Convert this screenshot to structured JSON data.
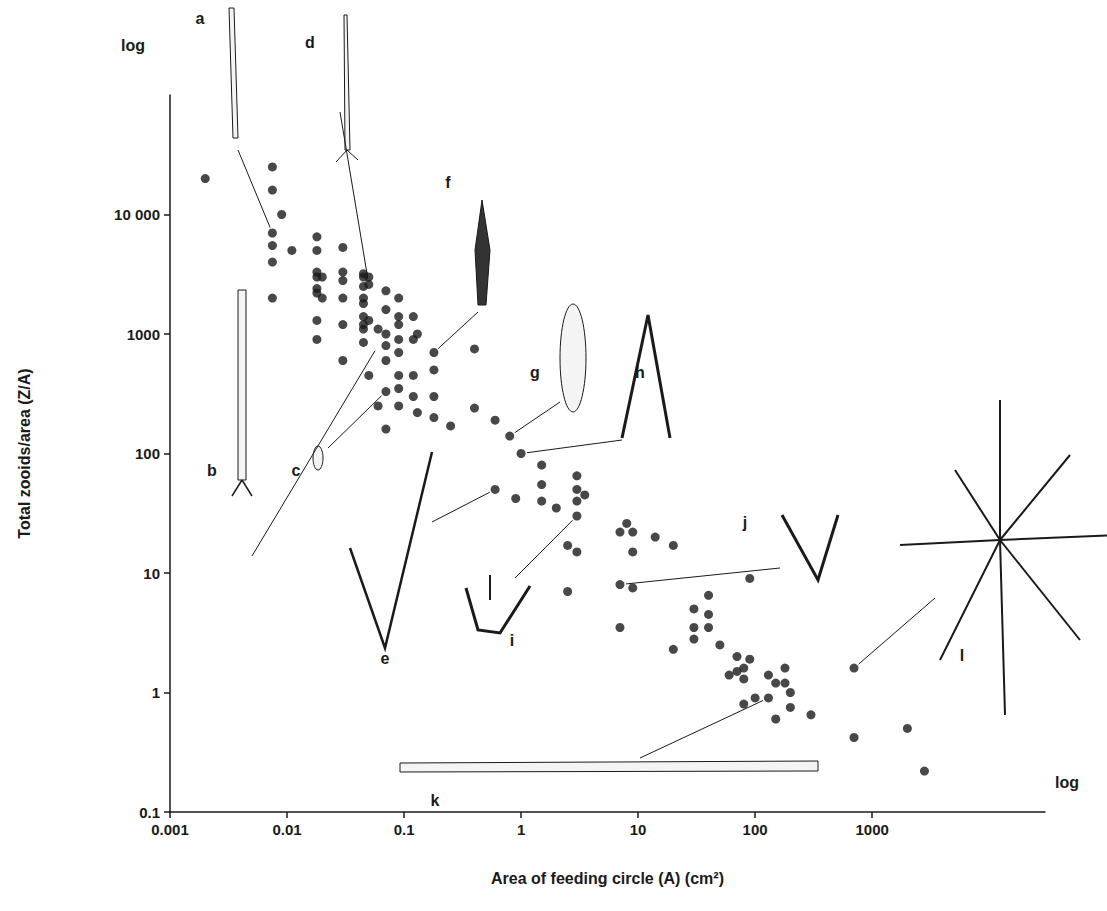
{
  "chart_data": {
    "type": "scatter",
    "x_label": "Area of feeding circle (A) (cm²)",
    "y_label": "Total zooids/area (Z/A)",
    "color": "#1a1a1a",
    "marker": "circle",
    "log": true,
    "grid": false,
    "xlim": [
      0.001,
      30000
    ],
    "ylim": [
      0.1,
      100000
    ],
    "xticks": [
      0.001,
      0.01,
      0.1,
      1,
      10,
      100,
      1000
    ],
    "yticks": [
      0.1,
      1,
      10,
      100,
      1000,
      {
        "value": 10000,
        "label": "10 000"
      }
    ],
    "x": [
      0.002,
      0.0075,
      0.0075,
      0.0075,
      0.0075,
      0.0075,
      0.0075,
      0.009,
      0.011,
      0.018,
      0.018,
      0.018,
      0.018,
      0.018,
      0.018,
      0.018,
      0.018,
      0.02,
      0.02,
      0.03,
      0.03,
      0.03,
      0.03,
      0.03,
      0.03,
      0.045,
      0.045,
      0.045,
      0.045,
      0.045,
      0.045,
      0.045,
      0.045,
      0.045,
      0.05,
      0.05,
      0.05,
      0.05,
      0.06,
      0.06,
      0.07,
      0.07,
      0.07,
      0.07,
      0.07,
      0.07,
      0.07,
      0.09,
      0.09,
      0.09,
      0.09,
      0.09,
      0.09,
      0.09,
      0.09,
      0.12,
      0.12,
      0.12,
      0.12,
      0.13,
      0.13,
      0.18,
      0.18,
      0.18,
      0.18,
      0.25,
      0.4,
      0.4,
      0.6,
      0.6,
      0.8,
      0.9,
      1,
      1.5,
      1.5,
      1.5,
      2,
      2.5,
      2.5,
      3,
      3,
      3,
      3,
      3,
      3.5,
      7,
      7,
      7,
      8,
      9,
      9,
      9,
      14,
      20,
      20,
      30,
      30,
      30,
      40,
      40,
      40,
      50,
      60,
      70,
      70,
      80,
      80,
      80,
      90,
      90,
      100,
      130,
      130,
      150,
      150,
      180,
      180,
      200,
      200,
      300,
      700,
      700,
      2000,
      2800
    ],
    "values": [
      20000,
      25000,
      16000,
      7000,
      5500,
      4000,
      2000,
      10000,
      5000,
      6500,
      5000,
      3300,
      3000,
      2400,
      2200,
      1300,
      900,
      3000,
      2000,
      5300,
      3300,
      2800,
      2000,
      1200,
      600,
      3200,
      3000,
      2500,
      2000,
      1800,
      1400,
      1200,
      1100,
      850,
      3000,
      2600,
      1300,
      450,
      1100,
      250,
      2300,
      1600,
      1000,
      800,
      600,
      330,
      160,
      2000,
      1400,
      1200,
      900,
      700,
      450,
      350,
      250,
      1400,
      900,
      450,
      300,
      1000,
      220,
      700,
      500,
      300,
      200,
      170,
      750,
      240,
      190,
      50,
      140,
      42,
      100,
      80,
      55,
      40,
      35,
      17,
      7,
      65,
      50,
      40,
      30,
      15,
      45,
      22,
      8,
      3.5,
      26,
      22,
      15,
      7.5,
      20,
      17,
      2.3,
      5,
      3.5,
      2.8,
      6.5,
      4.5,
      3.5,
      2.5,
      1.4,
      2,
      1.5,
      1.6,
      1.3,
      0.8,
      1.9,
      9,
      0.9,
      1.4,
      0.9,
      1.2,
      0.6,
      1.6,
      1.2,
      1,
      0.75,
      0.65,
      1.6,
      0.42,
      0.5,
      0.22
    ],
    "annotations": [
      {
        "text": "log",
        "axis": "y"
      },
      {
        "text": "log",
        "axis": "x"
      },
      {
        "text": "a",
        "x": 0.0075,
        "y": 7000
      },
      {
        "text": "b",
        "x": 0.06,
        "y": 800
      },
      {
        "text": "c",
        "x": 0.07,
        "y": 330
      },
      {
        "text": "d",
        "x": 0.05,
        "y": 2600
      },
      {
        "text": "e",
        "x": 0.6,
        "y": 50
      },
      {
        "text": "f",
        "x": 0.18,
        "y": 700
      },
      {
        "text": "g",
        "x": 0.8,
        "y": 140
      },
      {
        "text": "h",
        "x": 1,
        "y": 100
      },
      {
        "text": "i",
        "x": 3,
        "y": 30
      },
      {
        "text": "j",
        "x": 7,
        "y": 8
      },
      {
        "text": "k",
        "x": 130,
        "y": 0.9
      },
      {
        "text": "l",
        "x": 700,
        "y": 1.6
      }
    ]
  }
}
